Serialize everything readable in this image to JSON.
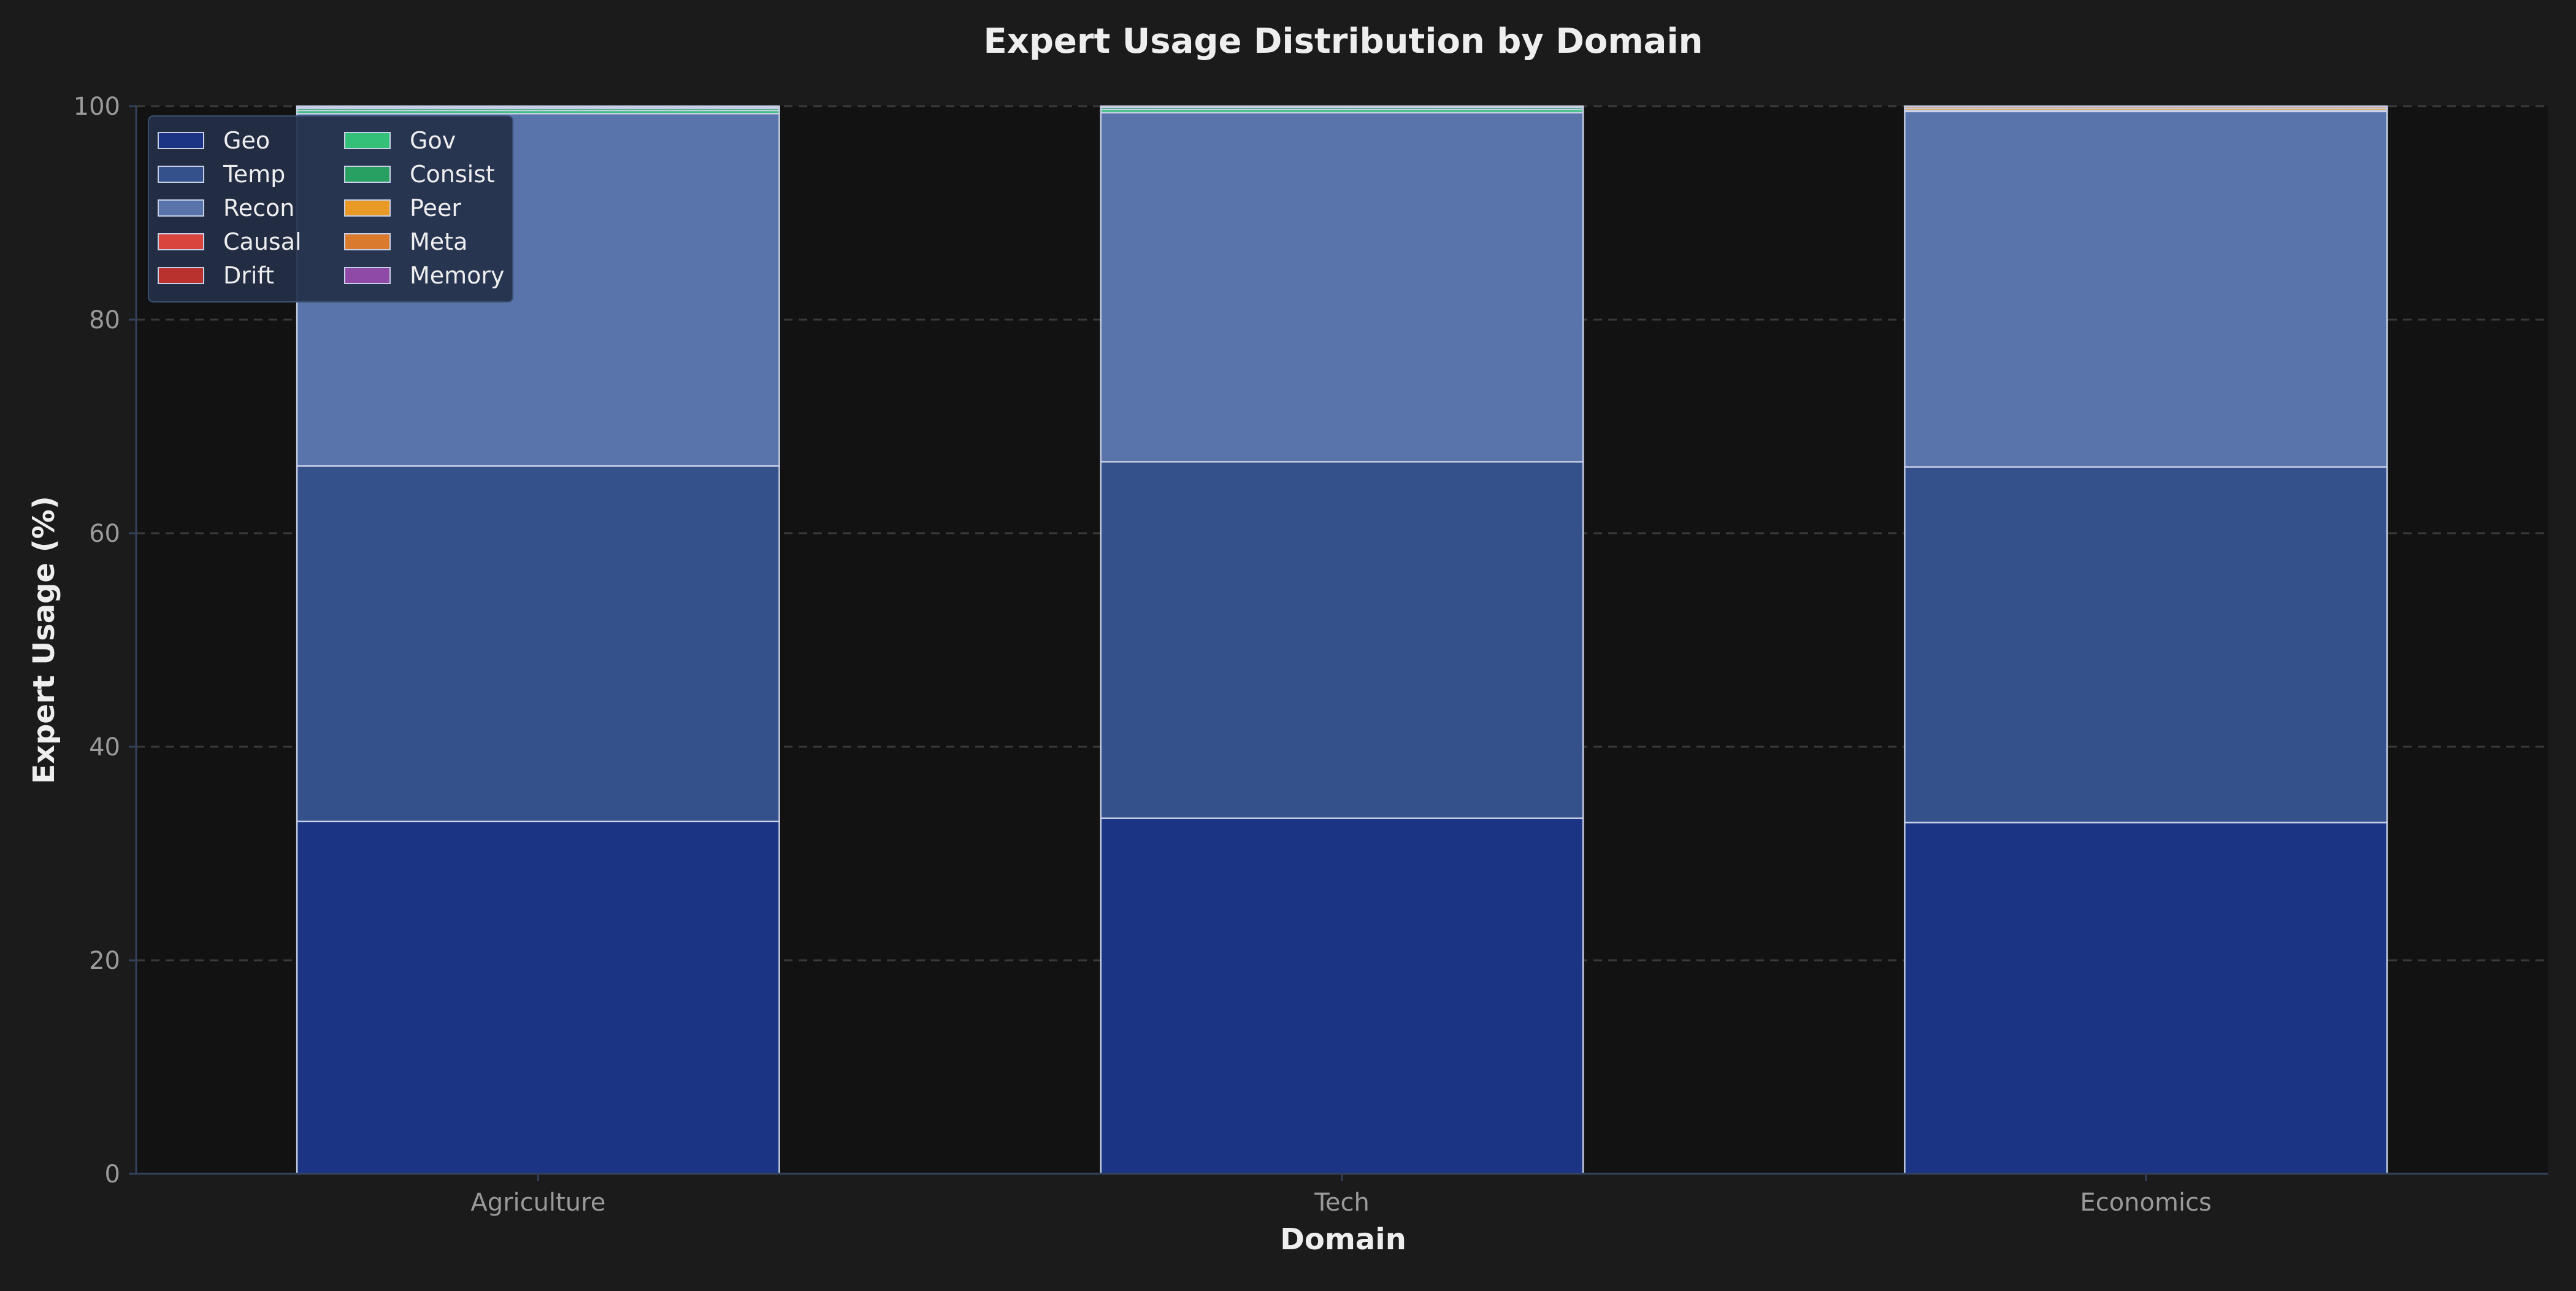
{
  "chart_data": {
    "type": "bar",
    "stacked": true,
    "title": "Expert Usage Distribution by Domain",
    "xlabel": "Domain",
    "ylabel": "Expert Usage (%)",
    "ylim": [
      0,
      100
    ],
    "yticks": [
      0,
      20,
      40,
      60,
      80,
      100
    ],
    "grid": true,
    "legend_position": "top-left",
    "legend_columns": 2,
    "categories": [
      "Agriculture",
      "Tech",
      "Economics"
    ],
    "series": [
      {
        "name": "Geo",
        "color": "#1b3484",
        "values": [
          33.0,
          33.3,
          32.9
        ]
      },
      {
        "name": "Temp",
        "color": "#34518b",
        "values": [
          33.3,
          33.4,
          33.3
        ]
      },
      {
        "name": "Recon",
        "color": "#5874ab",
        "values": [
          33.0,
          32.7,
          33.3
        ]
      },
      {
        "name": "Causal",
        "color": "#d9443c",
        "values": [
          0.0,
          0.0,
          0.1
        ]
      },
      {
        "name": "Drift",
        "color": "#b8332d",
        "values": [
          0.0,
          0.0,
          0.0
        ]
      },
      {
        "name": "Gov",
        "color": "#35c07a",
        "values": [
          0.3,
          0.3,
          0.0
        ]
      },
      {
        "name": "Consist",
        "color": "#27a062",
        "values": [
          0.2,
          0.2,
          0.0
        ]
      },
      {
        "name": "Peer",
        "color": "#e89a25",
        "values": [
          0.1,
          0.0,
          0.2
        ]
      },
      {
        "name": "Meta",
        "color": "#d97a2c",
        "values": [
          0.1,
          0.1,
          0.2
        ]
      },
      {
        "name": "Memory",
        "color": "#8e4aa6",
        "values": [
          0.0,
          0.0,
          0.0
        ]
      }
    ]
  },
  "colors": {
    "page_background": "#1b1b1b",
    "plot_background": "#121212",
    "bar_edge": "#c8cfe6",
    "grid": "#3a3a3a",
    "axis": "#33415c",
    "legend_background": "#243049",
    "legend_border": "#3a4f70"
  }
}
